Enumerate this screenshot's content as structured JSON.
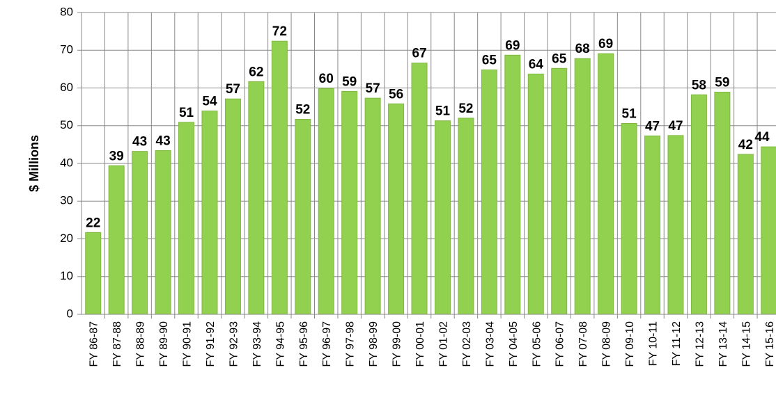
{
  "chart_data": {
    "type": "bar",
    "y_label": "$ Millions",
    "categories": [
      "FY 86-87",
      "FY 87-88",
      "FY 88-89",
      "FY 89-90",
      "FY 90-91",
      "FY 91-92",
      "FY 92-93",
      "FY 93-94",
      "FY 94-95",
      "FY 95-96",
      "FY 96-97",
      "FY 97-98",
      "FY 98-99",
      "FY 99-00",
      "FY 00-01",
      "FY 01-02",
      "FY 02-03",
      "FY 03-04",
      "FY 04-05",
      "FY 05-06",
      "FY 06-07",
      "FY 07-08",
      "FY 08-09",
      "FY 09-10",
      "FY 10-11",
      "FY 11-12",
      "FY 12-13",
      "FY 13-14",
      "FY 14-15",
      "FY 15-16"
    ],
    "values": [
      21.7,
      39.4,
      43.2,
      43.4,
      50.9,
      53.9,
      57.1,
      61.7,
      72.4,
      51.7,
      59.9,
      59.1,
      57.3,
      55.8,
      66.6,
      51.3,
      52,
      64.8,
      68.7,
      63.7,
      65.2,
      67.8,
      69.1,
      50.6,
      47.3,
      47.4,
      58.2,
      58.9,
      42.4,
      44.4
    ],
    "value_labels": [
      "22",
      "39",
      "43",
      "43",
      "51",
      "54",
      "57",
      "62",
      "72",
      "52",
      "60",
      "59",
      "57",
      "56",
      "67",
      "51",
      "52",
      "65",
      "69",
      "64",
      "65",
      "68",
      "69",
      "51",
      "47",
      "47",
      "58",
      "59",
      "42",
      "44"
    ],
    "color": "#92d050",
    "ylim": [
      0,
      80
    ],
    "yticks": [
      0,
      10,
      20,
      30,
      40,
      50,
      60,
      70,
      80
    ],
    "grid": true
  }
}
